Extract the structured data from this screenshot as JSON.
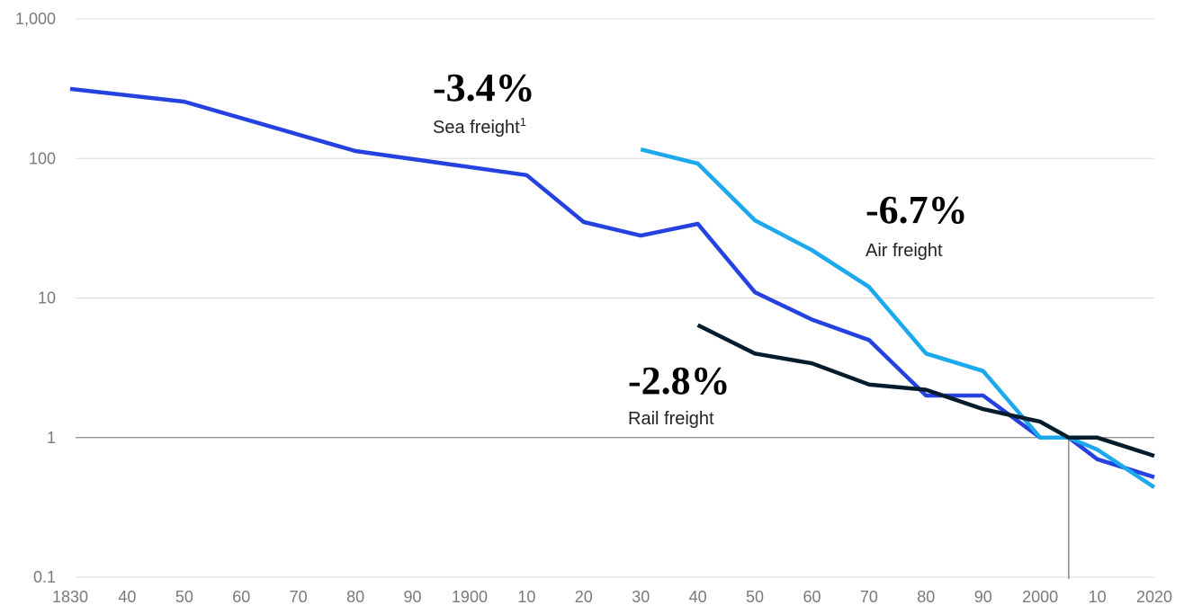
{
  "chart_data": {
    "type": "line",
    "log_scale": true,
    "grid": true,
    "xlim": [
      1830,
      2020
    ],
    "ylim": [
      0.1,
      1000
    ],
    "xticks": [
      {
        "value": 1830,
        "label": "1830"
      },
      {
        "value": 1840,
        "label": "40"
      },
      {
        "value": 1850,
        "label": "50"
      },
      {
        "value": 1860,
        "label": "60"
      },
      {
        "value": 1870,
        "label": "70"
      },
      {
        "value": 1880,
        "label": "80"
      },
      {
        "value": 1890,
        "label": "90"
      },
      {
        "value": 1900,
        "label": "1900"
      },
      {
        "value": 1910,
        "label": "10"
      },
      {
        "value": 1920,
        "label": "20"
      },
      {
        "value": 1930,
        "label": "30"
      },
      {
        "value": 1940,
        "label": "40"
      },
      {
        "value": 1950,
        "label": "50"
      },
      {
        "value": 1960,
        "label": "60"
      },
      {
        "value": 1970,
        "label": "70"
      },
      {
        "value": 1980,
        "label": "80"
      },
      {
        "value": 1990,
        "label": "90"
      },
      {
        "value": 2000,
        "label": "2000"
      },
      {
        "value": 2010,
        "label": "10"
      },
      {
        "value": 2020,
        "label": "2020"
      }
    ],
    "yticks": [
      0.1,
      1,
      10,
      100,
      {
        "value": 1000,
        "label": "1,000"
      }
    ],
    "reference": {
      "x": 2005,
      "y": 1
    },
    "series": [
      {
        "name": "Sea freight",
        "footnote": "1",
        "rate": "-3.4%",
        "color": "#2541e0",
        "x": [
          1830,
          1850,
          1880,
          1910,
          1920,
          1930,
          1940,
          1950,
          1960,
          1970,
          1980,
          1990,
          2000,
          2005,
          2010,
          2020
        ],
        "values": [
          315,
          255,
          113,
          76,
          35,
          28,
          34,
          11,
          7,
          5,
          2,
          2,
          1,
          1,
          0.7,
          0.52
        ]
      },
      {
        "name": "Air freight",
        "rate": "-6.7%",
        "color": "#1ba8ed",
        "x": [
          1930,
          1940,
          1950,
          1960,
          1970,
          1980,
          1990,
          2000,
          2005,
          2010,
          2020
        ],
        "values": [
          116,
          92,
          36,
          22,
          12,
          4,
          3,
          1,
          1,
          0.82,
          0.44
        ]
      },
      {
        "name": "Rail freight",
        "rate": "-2.8%",
        "color": "#051c2c",
        "x": [
          1940,
          1950,
          1960,
          1970,
          1980,
          1990,
          2000,
          2005,
          2010,
          2020
        ],
        "values": [
          6.4,
          4,
          3.4,
          2.4,
          2.2,
          1.6,
          1.3,
          1,
          1,
          0.74
        ]
      }
    ]
  }
}
